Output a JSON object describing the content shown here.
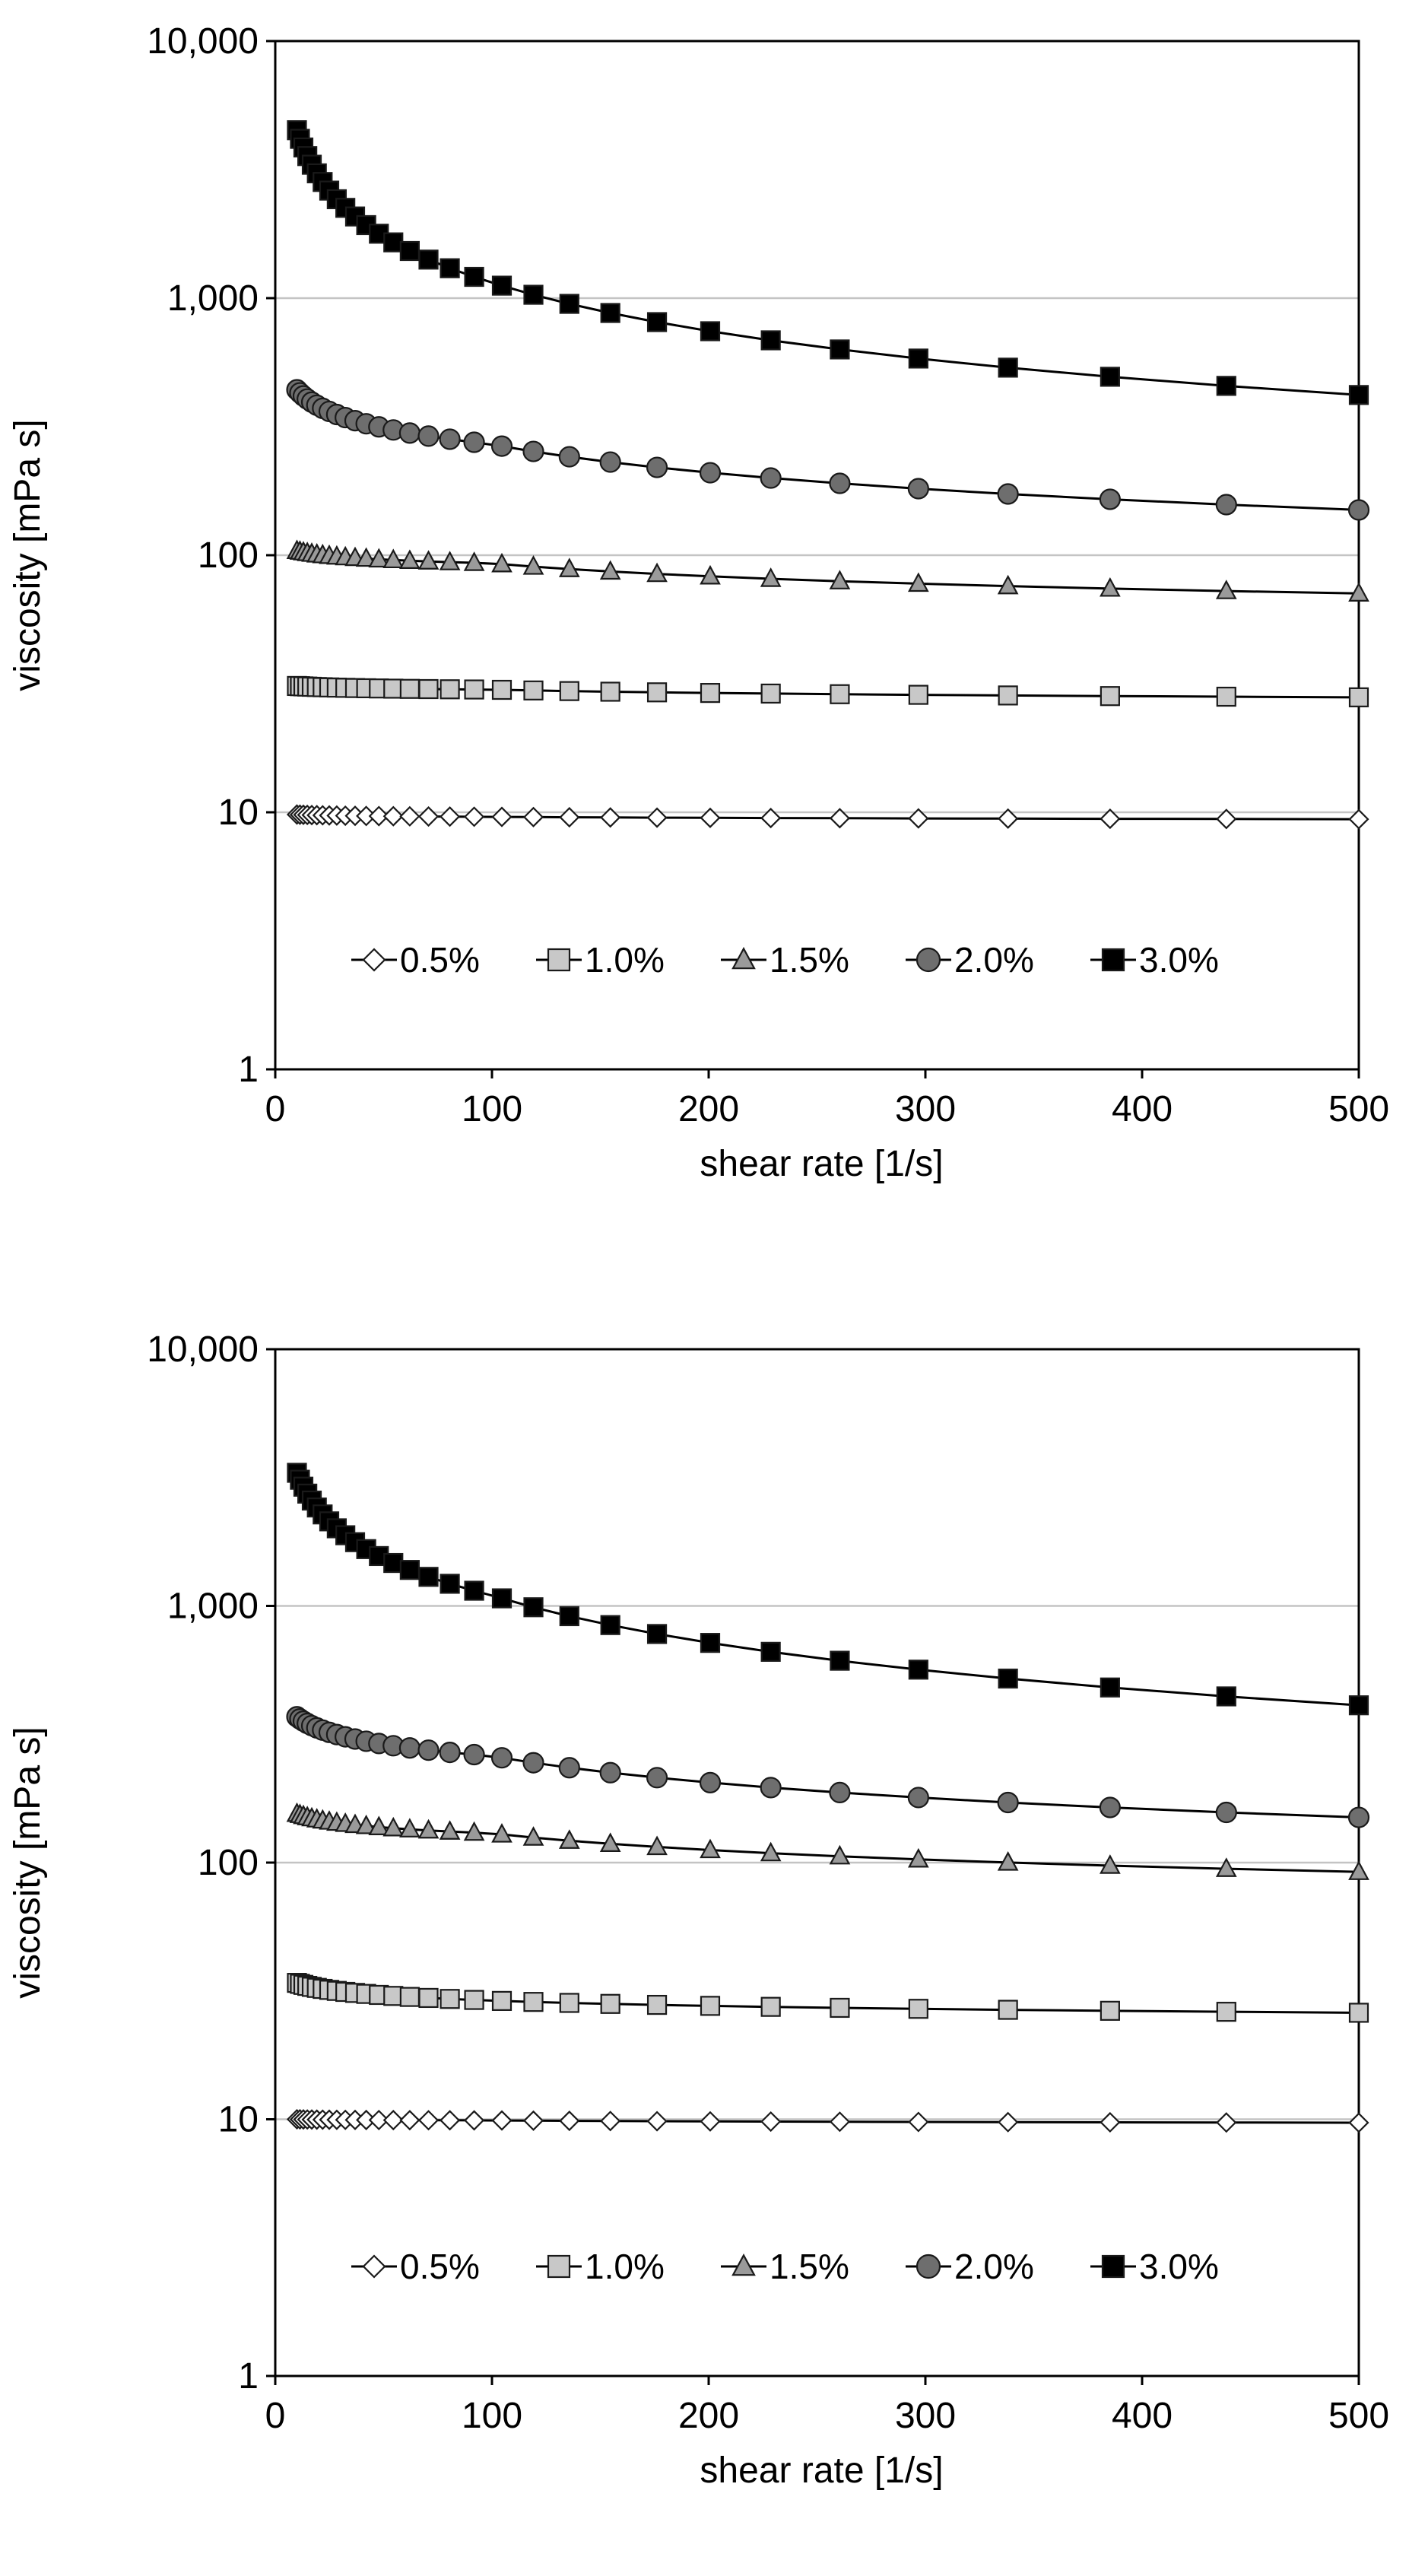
{
  "chart_data": [
    {
      "type": "line",
      "title": "",
      "xlabel": "shear rate [1/s]",
      "ylabel": "viscosity [mPa s]",
      "xlim": [
        0,
        500
      ],
      "ylim": [
        1,
        10000
      ],
      "yscale": "log",
      "grid": "major horizontal",
      "legend": "center",
      "x_ticks": [
        0,
        100,
        200,
        300,
        400,
        500
      ],
      "x_tick_labels": [
        "0",
        "100",
        "200",
        "300",
        "400",
        "500"
      ],
      "y_ticks": [
        1,
        10,
        100,
        1000,
        10000
      ],
      "y_tick_labels": [
        "1",
        "10",
        "100",
        "1,000",
        "10,000"
      ],
      "series": [
        {
          "name": "0.5%",
          "marker": "diamond",
          "fill": "#ffffff",
          "v0": 9.8,
          "v100": 9.6,
          "v500": 9.4
        },
        {
          "name": "1.0%",
          "marker": "square",
          "fill": "#c8c8c8",
          "v0": 31,
          "v100": 30,
          "v500": 28
        },
        {
          "name": "1.5%",
          "marker": "triangle",
          "fill": "#9a9a9a",
          "v0": 104,
          "v100": 93,
          "v500": 71
        },
        {
          "name": "2.0%",
          "marker": "circle",
          "fill": "#6e6e6e",
          "v0": 440,
          "v100": 270,
          "v500": 150
        },
        {
          "name": "3.0%",
          "marker": "square",
          "fill": "#000000",
          "v0": 4500,
          "v100": 1150,
          "v500": 420
        }
      ]
    },
    {
      "type": "line",
      "title": "",
      "xlabel": "shear rate [1/s]",
      "ylabel": "viscosity [mPa s]",
      "xlim": [
        0,
        500
      ],
      "ylim": [
        1,
        10000
      ],
      "yscale": "log",
      "grid": "major horizontal",
      "legend": "center",
      "x_ticks": [
        0,
        100,
        200,
        300,
        400,
        500
      ],
      "x_tick_labels": [
        "0",
        "100",
        "200",
        "300",
        "400",
        "500"
      ],
      "y_ticks": [
        1,
        10,
        100,
        1000,
        10000
      ],
      "y_tick_labels": [
        "1",
        "10",
        "100",
        "1,000",
        "10,000"
      ],
      "series": [
        {
          "name": "0.5%",
          "marker": "diamond",
          "fill": "#ffffff",
          "v0": 10,
          "v100": 9.9,
          "v500": 9.7
        },
        {
          "name": "1.0%",
          "marker": "square",
          "fill": "#c8c8c8",
          "v0": 34,
          "v100": 29,
          "v500": 26
        },
        {
          "name": "1.5%",
          "marker": "triangle",
          "fill": "#9a9a9a",
          "v0": 155,
          "v100": 130,
          "v500": 92
        },
        {
          "name": "2.0%",
          "marker": "circle",
          "fill": "#6e6e6e",
          "v0": 370,
          "v100": 260,
          "v500": 150
        },
        {
          "name": "3.0%",
          "marker": "square",
          "fill": "#000000",
          "v0": 3300,
          "v100": 1100,
          "v500": 410
        }
      ]
    }
  ]
}
